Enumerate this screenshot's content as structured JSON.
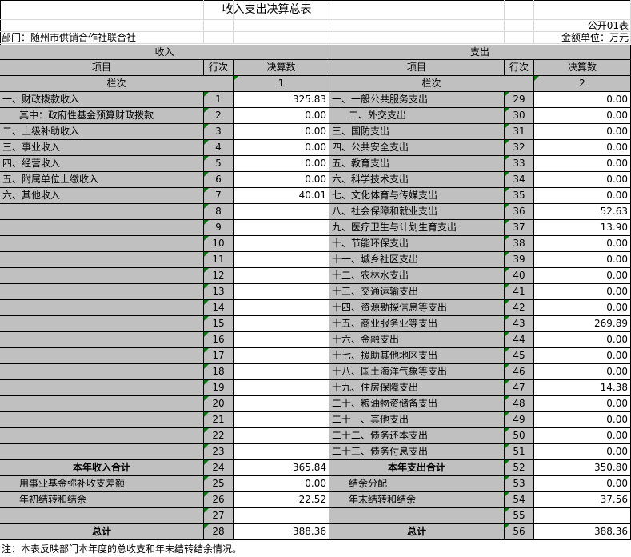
{
  "header": {
    "title": "收入支出决算总表",
    "report_code": "公开01表",
    "department": "部门：随州市供销合作社联合社",
    "unit": "金额单位：万元"
  },
  "table": {
    "sections": [
      "收入",
      "支出"
    ],
    "columns": [
      "项目",
      "行次",
      "决算数",
      "项目",
      "行次",
      "决算数"
    ],
    "index_row": [
      "栏次",
      1,
      "栏次",
      2
    ],
    "rows": [
      [
        "一、财政拨款收入",
        1,
        "325.83",
        "一、一般公共服务支出",
        29,
        "0.00"
      ],
      [
        "其中：政府性基金预算财政拨款",
        2,
        "0.00",
        "二、外交支出",
        30,
        "0.00"
      ],
      [
        "二、上级补助收入",
        3,
        "0.00",
        "三、国防支出",
        31,
        "0.00"
      ],
      [
        "三、事业收入",
        4,
        "0.00",
        "四、公共安全支出",
        32,
        "0.00"
      ],
      [
        "四、经营收入",
        5,
        "0.00",
        "五、教育支出",
        33,
        "0.00"
      ],
      [
        "五、附属单位上缴收入",
        6,
        "0.00",
        "六、科学技术支出",
        34,
        "0.00"
      ],
      [
        "六、其他收入",
        7,
        "40.01",
        "七、文化体育与传媒支出",
        35,
        "0.00"
      ],
      [
        null,
        8,
        null,
        "八、社会保障和就业支出",
        36,
        "52.63"
      ],
      [
        null,
        9,
        null,
        "九、医疗卫生与计划生育支出",
        37,
        "13.90"
      ],
      [
        null,
        10,
        null,
        "十、节能环保支出",
        38,
        "0.00"
      ],
      [
        null,
        11,
        null,
        "十一、城乡社区支出",
        39,
        "0.00"
      ],
      [
        null,
        12,
        null,
        "十二、农林水支出",
        40,
        "0.00"
      ],
      [
        null,
        13,
        null,
        "十三、交通运输支出",
        41,
        "0.00"
      ],
      [
        null,
        14,
        null,
        "十四、资源勘探信息等支出",
        42,
        "0.00"
      ],
      [
        null,
        15,
        null,
        "十五、商业服务业等支出",
        43,
        "269.89"
      ],
      [
        null,
        16,
        null,
        "十六、金融支出",
        44,
        "0.00"
      ],
      [
        null,
        17,
        null,
        "十七、援助其他地区支出",
        45,
        "0.00"
      ],
      [
        null,
        18,
        null,
        "十八、国土海洋气象等支出",
        46,
        "0.00"
      ],
      [
        null,
        19,
        null,
        "十九、住房保障支出",
        47,
        "14.38"
      ],
      [
        null,
        20,
        null,
        "二十、粮油物资储备支出",
        48,
        "0.00"
      ],
      [
        null,
        21,
        null,
        "二十一、其他支出",
        49,
        "0.00"
      ],
      [
        null,
        22,
        null,
        "二十二、债务还本支出",
        50,
        "0.00"
      ],
      [
        null,
        23,
        null,
        "二十三、债务付息支出",
        51,
        "0.00"
      ],
      [
        "本年收入合计",
        24,
        "365.84",
        "本年支出合计",
        52,
        "350.80"
      ],
      [
        "用事业基金弥补收支差额",
        25,
        "0.00",
        "结余分配",
        53,
        "0.00"
      ],
      [
        "年初结转和结余",
        26,
        "22.52",
        "年末结转和结余",
        54,
        "37.56"
      ],
      [
        null,
        27,
        null,
        null,
        55,
        null
      ],
      [
        "总计",
        28,
        "388.36",
        "总计",
        56,
        "388.36"
      ]
    ]
  },
  "note": "注：本表反映部门本年度的总收支和年末结转结余情况。"
}
